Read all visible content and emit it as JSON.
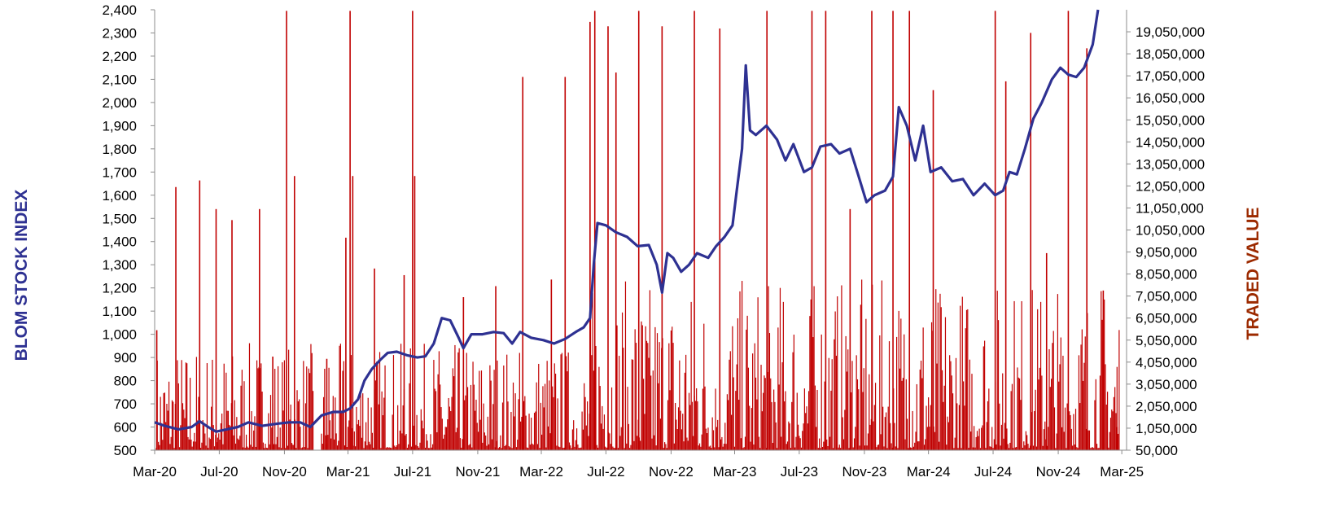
{
  "chart_data": {
    "type": "bar+line",
    "colors": {
      "index_line": "#2E3192",
      "traded_bars": "#C00000",
      "left_title": "#2E3192",
      "right_title": "#9C2A00"
    },
    "y_left": {
      "label": "BLOM STOCK INDEX",
      "ylim": [
        500,
        2400
      ],
      "ticks": [
        "2,400",
        "2,300",
        "2,200",
        "2,100",
        "2,000",
        "1,900",
        "1,800",
        "1,700",
        "1,600",
        "1,500",
        "1,400",
        "1,300",
        "1,200",
        "1,100",
        "1,000",
        "900",
        "800",
        "700",
        "600",
        "500"
      ]
    },
    "y_right": {
      "label": "TRADED VALUE",
      "ylim": [
        50000,
        20050000
      ],
      "ticks": [
        "19,050,000",
        "18,050,000",
        "17,050,000",
        "16,050,000",
        "15,050,000",
        "14,050,000",
        "13,050,000",
        "12,050,000",
        "11,050,000",
        "10,050,000",
        "9,050,000",
        "8,050,000",
        "7,050,000",
        "6,050,000",
        "5,050,000",
        "4,050,000",
        "3,050,000",
        "2,050,000",
        "1,050,000",
        "50,000"
      ]
    },
    "x_ticks": [
      "Mar-20",
      "Jul-20",
      "Nov-20",
      "Mar-21",
      "Jul-21",
      "Nov-21",
      "Mar-22",
      "Jul-22",
      "Nov-22",
      "Mar-23",
      "Jul-23",
      "Nov-23",
      "Mar-24",
      "Jul-24",
      "Nov-24",
      "Mar-25"
    ],
    "series": [
      {
        "name": "BLOM STOCK INDEX",
        "points": [
          [
            "2020-03-01",
            620
          ],
          [
            "2020-03-20",
            605
          ],
          [
            "2020-04-15",
            590
          ],
          [
            "2020-05-10",
            600
          ],
          [
            "2020-05-25",
            625
          ],
          [
            "2020-06-10",
            600
          ],
          [
            "2020-06-25",
            580
          ],
          [
            "2020-07-15",
            590
          ],
          [
            "2020-08-05",
            600
          ],
          [
            "2020-08-25",
            620
          ],
          [
            "2020-09-20",
            605
          ],
          [
            "2020-10-20",
            615
          ],
          [
            "2020-11-10",
            620
          ],
          [
            "2020-12-01",
            620
          ],
          [
            "2020-12-20",
            600
          ],
          [
            "2021-01-10",
            650
          ],
          [
            "2021-02-01",
            665
          ],
          [
            "2021-02-20",
            665
          ],
          [
            "2021-03-05",
            680
          ],
          [
            "2021-03-20",
            720
          ],
          [
            "2021-04-01",
            800
          ],
          [
            "2021-04-15",
            850
          ],
          [
            "2021-05-01",
            890
          ],
          [
            "2021-05-15",
            920
          ],
          [
            "2021-06-01",
            925
          ],
          [
            "2021-06-20",
            910
          ],
          [
            "2021-07-10",
            900
          ],
          [
            "2021-07-25",
            905
          ],
          [
            "2021-08-10",
            960
          ],
          [
            "2021-08-25",
            1070
          ],
          [
            "2021-09-10",
            1060
          ],
          [
            "2021-09-25",
            990
          ],
          [
            "2021-10-05",
            940
          ],
          [
            "2021-10-20",
            1000
          ],
          [
            "2021-11-10",
            1000
          ],
          [
            "2021-12-01",
            1010
          ],
          [
            "2021-12-20",
            1005
          ],
          [
            "2022-01-05",
            960
          ],
          [
            "2022-01-20",
            1010
          ],
          [
            "2022-02-10",
            985
          ],
          [
            "2022-03-05",
            975
          ],
          [
            "2022-03-25",
            960
          ],
          [
            "2022-04-15",
            980
          ],
          [
            "2022-05-05",
            1010
          ],
          [
            "2022-05-20",
            1030
          ],
          [
            "2022-06-01",
            1070
          ],
          [
            "2022-06-08",
            1300
          ],
          [
            "2022-06-15",
            1480
          ],
          [
            "2022-07-01",
            1470
          ],
          [
            "2022-07-20",
            1440
          ],
          [
            "2022-08-10",
            1420
          ],
          [
            "2022-08-30",
            1380
          ],
          [
            "2022-09-20",
            1385
          ],
          [
            "2022-10-05",
            1300
          ],
          [
            "2022-10-15",
            1180
          ],
          [
            "2022-10-25",
            1350
          ],
          [
            "2022-11-05",
            1330
          ],
          [
            "2022-11-20",
            1270
          ],
          [
            "2022-12-05",
            1300
          ],
          [
            "2022-12-20",
            1350
          ],
          [
            "2023-01-10",
            1330
          ],
          [
            "2023-01-25",
            1380
          ],
          [
            "2023-02-10",
            1420
          ],
          [
            "2023-02-25",
            1470
          ],
          [
            "2023-03-05",
            1620
          ],
          [
            "2023-03-15",
            1800
          ],
          [
            "2023-03-22",
            2160
          ],
          [
            "2023-03-30",
            1880
          ],
          [
            "2023-04-10",
            1860
          ],
          [
            "2023-04-30",
            1900
          ],
          [
            "2023-05-20",
            1840
          ],
          [
            "2023-06-05",
            1750
          ],
          [
            "2023-06-20",
            1820
          ],
          [
            "2023-07-10",
            1700
          ],
          [
            "2023-07-25",
            1720
          ],
          [
            "2023-08-10",
            1810
          ],
          [
            "2023-08-30",
            1820
          ],
          [
            "2023-09-15",
            1780
          ],
          [
            "2023-10-05",
            1800
          ],
          [
            "2023-10-20",
            1690
          ],
          [
            "2023-11-05",
            1570
          ],
          [
            "2023-11-20",
            1600
          ],
          [
            "2023-12-10",
            1620
          ],
          [
            "2023-12-25",
            1680
          ],
          [
            "2024-01-05",
            1980
          ],
          [
            "2024-01-20",
            1900
          ],
          [
            "2024-02-05",
            1750
          ],
          [
            "2024-02-20",
            1900
          ],
          [
            "2024-03-05",
            1700
          ],
          [
            "2024-03-25",
            1720
          ],
          [
            "2024-04-15",
            1660
          ],
          [
            "2024-05-05",
            1670
          ],
          [
            "2024-05-25",
            1600
          ],
          [
            "2024-06-15",
            1650
          ],
          [
            "2024-07-05",
            1600
          ],
          [
            "2024-07-20",
            1620
          ],
          [
            "2024-08-01",
            1700
          ],
          [
            "2024-08-15",
            1690
          ],
          [
            "2024-08-30",
            1800
          ],
          [
            "2024-09-15",
            1930
          ],
          [
            "2024-10-01",
            2000
          ],
          [
            "2024-10-20",
            2100
          ],
          [
            "2024-11-05",
            2150
          ],
          [
            "2024-11-20",
            2120
          ],
          [
            "2024-12-05",
            2110
          ],
          [
            "2024-12-20",
            2150
          ],
          [
            "2025-01-05",
            2250
          ],
          [
            "2025-01-15",
            2400
          ]
        ]
      },
      {
        "name": "TRADED VALUE",
        "points": [
          [
            "2020-03-05",
            5500000
          ],
          [
            "2020-04-10",
            12000000
          ],
          [
            "2020-05-25",
            12300000
          ],
          [
            "2020-06-25",
            11000000
          ],
          [
            "2020-07-25",
            10500000
          ],
          [
            "2020-09-15",
            11000000
          ],
          [
            "2020-10-10",
            4300000
          ],
          [
            "2020-11-05",
            20000000
          ],
          [
            "2020-11-20",
            12500000
          ],
          [
            "2021-01-20",
            4200000
          ],
          [
            "2021-02-25",
            9700000
          ],
          [
            "2021-03-05",
            20000000
          ],
          [
            "2021-03-10",
            12500000
          ],
          [
            "2021-04-20",
            8300000
          ],
          [
            "2021-06-15",
            8000000
          ],
          [
            "2021-07-01",
            20000000
          ],
          [
            "2021-07-05",
            12500000
          ],
          [
            "2021-10-05",
            7000000
          ],
          [
            "2021-12-05",
            7500000
          ],
          [
            "2022-01-25",
            17000000
          ],
          [
            "2022-03-20",
            7800000
          ],
          [
            "2022-04-15",
            17000000
          ],
          [
            "2022-06-01",
            19500000
          ],
          [
            "2022-06-10",
            20000000
          ],
          [
            "2022-07-05",
            19300000
          ],
          [
            "2022-07-20",
            17200000
          ],
          [
            "2022-09-01",
            20000000
          ],
          [
            "2022-10-15",
            19300000
          ],
          [
            "2022-12-15",
            20000000
          ],
          [
            "2023-02-01",
            19200000
          ],
          [
            "2023-05-01",
            20000000
          ],
          [
            "2023-07-25",
            20000000
          ],
          [
            "2023-08-20",
            20000000
          ],
          [
            "2023-10-05",
            11000000
          ],
          [
            "2023-11-15",
            20000000
          ],
          [
            "2023-12-25",
            20000000
          ],
          [
            "2024-01-25",
            20000000
          ],
          [
            "2024-03-10",
            16400000
          ],
          [
            "2024-07-05",
            20000000
          ],
          [
            "2024-07-25",
            16800000
          ],
          [
            "2024-09-10",
            19000000
          ],
          [
            "2024-10-10",
            9000000
          ],
          [
            "2024-11-20",
            20000000
          ],
          [
            "2024-12-25",
            18300000
          ],
          [
            "2025-01-25",
            7300000
          ],
          [
            "2025-02-20",
            1100000
          ]
        ]
      }
    ],
    "grid": false,
    "legend": "none"
  }
}
